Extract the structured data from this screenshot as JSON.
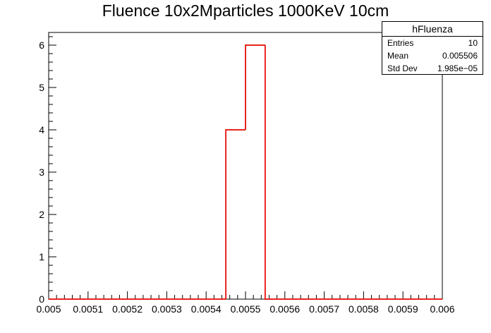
{
  "chart_data": {
    "type": "bar",
    "title": "Fluence 10x2Mparticles 1000KeV 10cm",
    "xlim": [
      0.005,
      0.006
    ],
    "ylim": [
      0,
      6.3
    ],
    "x_ticks": [
      "0.005",
      "0.0051",
      "0.0052",
      "0.0053",
      "0.0054",
      "0.0055",
      "0.0056",
      "0.0057",
      "0.0058",
      "0.0059",
      "0.006"
    ],
    "y_ticks": [
      "0",
      "1",
      "2",
      "3",
      "4",
      "5",
      "6"
    ],
    "bin_edges": [
      0.005,
      0.00505,
      0.0051,
      0.00515,
      0.0052,
      0.00525,
      0.0053,
      0.00535,
      0.0054,
      0.00545,
      0.0055,
      0.00555,
      0.0056,
      0.00565,
      0.0057,
      0.00575,
      0.0058,
      0.00585,
      0.0059,
      0.00595,
      0.006
    ],
    "values": [
      0,
      0,
      0,
      0,
      0,
      0,
      0,
      0,
      0,
      4,
      6,
      0,
      0,
      0,
      0,
      0,
      0,
      0,
      0,
      0
    ],
    "line_color": "#e8231f",
    "grid": false,
    "legend": "top-right"
  },
  "stats": {
    "name": "hFluenza",
    "rows": [
      {
        "label": "Entries",
        "value": "10"
      },
      {
        "label": "Mean",
        "value": "0.005506"
      },
      {
        "label": "Std Dev",
        "value": "1.985e−05"
      }
    ]
  }
}
